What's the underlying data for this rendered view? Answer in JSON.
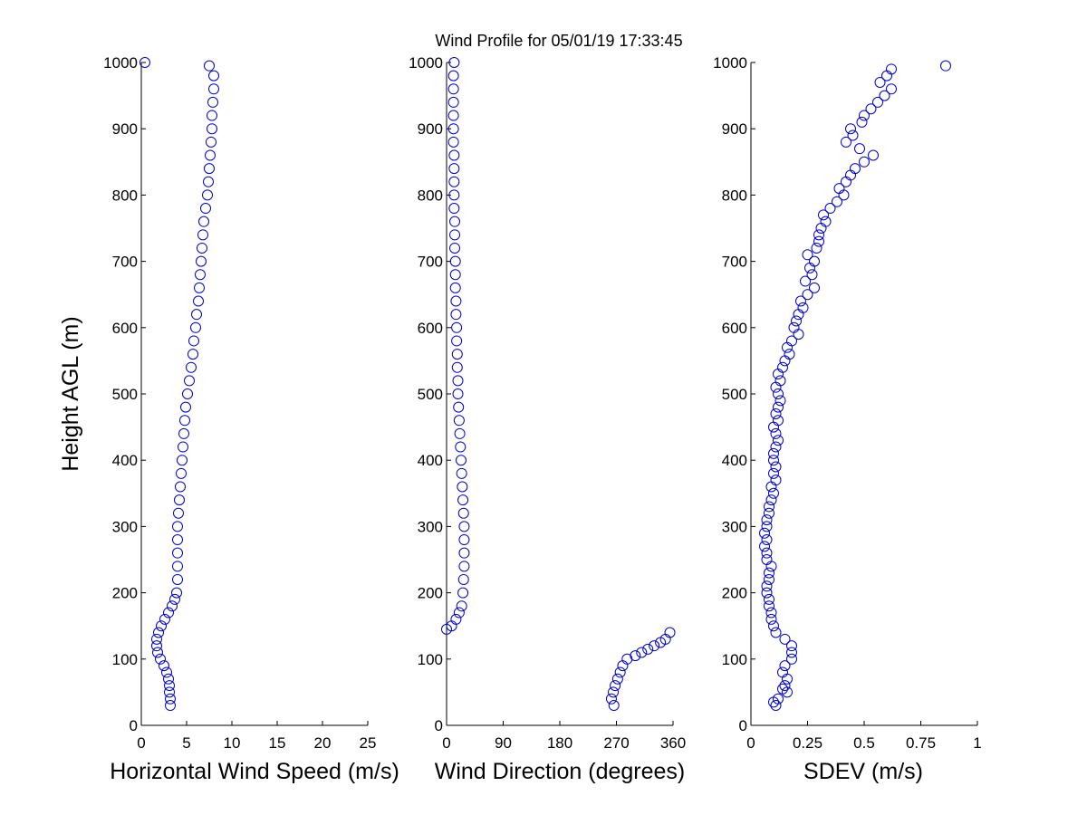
{
  "figure": {
    "title": "Wind Profile for  05/01/19 17:33:45",
    "ylabel": "Height AGL (m)"
  },
  "colors": {
    "marker": "#0000cc",
    "axis": "#000000",
    "background": "#ffffff"
  },
  "chart_data": [
    {
      "type": "scatter",
      "xlabel": "Horizontal Wind Speed (m/s)",
      "xlim": [
        0,
        25
      ],
      "ylim": [
        0,
        1000
      ],
      "xticks": [
        0,
        5,
        10,
        15,
        20,
        25
      ],
      "xtick_labels": [
        "0",
        "5",
        "10",
        "15",
        "20",
        "25"
      ],
      "yticks": [
        0,
        100,
        200,
        300,
        400,
        500,
        600,
        700,
        800,
        900,
        1000
      ],
      "ytick_labels": [
        "0",
        "100",
        "200",
        "300",
        "400",
        "500",
        "600",
        "700",
        "800",
        "900",
        "1000"
      ],
      "grid": false,
      "y": [
        30,
        40,
        50,
        60,
        70,
        80,
        90,
        100,
        110,
        120,
        130,
        140,
        150,
        160,
        170,
        180,
        190,
        200,
        220,
        240,
        260,
        280,
        300,
        320,
        340,
        360,
        380,
        400,
        420,
        440,
        460,
        480,
        500,
        520,
        540,
        560,
        580,
        600,
        620,
        640,
        660,
        680,
        700,
        720,
        740,
        760,
        780,
        800,
        820,
        840,
        860,
        880,
        900,
        920,
        940,
        960,
        980,
        995,
        1000
      ],
      "x": [
        3.2,
        3.2,
        3.1,
        3.1,
        3.0,
        2.8,
        2.5,
        2.1,
        1.8,
        1.7,
        1.7,
        1.9,
        2.2,
        2.6,
        3.0,
        3.4,
        3.7,
        3.9,
        4.0,
        4.0,
        4.0,
        4.0,
        4.0,
        4.1,
        4.2,
        4.3,
        4.4,
        4.5,
        4.6,
        4.7,
        4.8,
        4.9,
        5.1,
        5.3,
        5.5,
        5.7,
        5.8,
        6.0,
        6.1,
        6.3,
        6.4,
        6.5,
        6.6,
        6.7,
        6.8,
        6.9,
        7.1,
        7.3,
        7.4,
        7.5,
        7.6,
        7.7,
        7.8,
        7.8,
        7.9,
        8.0,
        8.0,
        7.5,
        0.4
      ]
    },
    {
      "type": "scatter",
      "xlabel": "Wind Direction (degrees)",
      "xlim": [
        0,
        360
      ],
      "ylim": [
        0,
        1000
      ],
      "xticks": [
        0,
        90,
        180,
        270,
        360
      ],
      "xtick_labels": [
        "0",
        "90",
        "180",
        "270",
        "360"
      ],
      "yticks": [
        0,
        100,
        200,
        300,
        400,
        500,
        600,
        700,
        800,
        900,
        1000
      ],
      "ytick_labels": [
        "0",
        "100",
        "200",
        "300",
        "400",
        "500",
        "600",
        "700",
        "800",
        "900",
        "1000"
      ],
      "grid": false,
      "y": [
        30,
        40,
        50,
        60,
        70,
        80,
        90,
        100,
        105,
        110,
        115,
        120,
        125,
        130,
        140,
        145,
        150,
        160,
        170,
        180,
        200,
        220,
        240,
        260,
        280,
        300,
        320,
        340,
        360,
        380,
        400,
        420,
        440,
        460,
        480,
        500,
        520,
        540,
        560,
        580,
        600,
        620,
        640,
        660,
        680,
        700,
        720,
        740,
        760,
        780,
        800,
        820,
        840,
        860,
        880,
        900,
        920,
        940,
        960,
        980,
        1000
      ],
      "x": [
        266,
        262,
        265,
        268,
        272,
        276,
        280,
        287,
        300,
        310,
        320,
        330,
        340,
        348,
        355,
        0,
        8,
        15,
        20,
        24,
        26,
        27,
        28,
        28,
        28,
        28,
        27,
        26,
        25,
        24,
        23,
        22,
        21,
        20,
        19,
        18,
        18,
        17,
        17,
        16,
        16,
        15,
        15,
        14,
        14,
        14,
        13,
        13,
        13,
        12,
        12,
        12,
        12,
        12,
        11,
        11,
        11,
        11,
        11,
        11,
        12
      ]
    },
    {
      "type": "scatter",
      "xlabel": "SDEV  (m/s)",
      "xlim": [
        0,
        1
      ],
      "ylim": [
        0,
        1000
      ],
      "xticks": [
        0,
        0.25,
        0.5,
        0.75,
        1
      ],
      "xtick_labels": [
        "0",
        "0.25",
        "0.5",
        "0.75",
        "1"
      ],
      "yticks": [
        0,
        100,
        200,
        300,
        400,
        500,
        600,
        700,
        800,
        900,
        1000
      ],
      "ytick_labels": [
        "0",
        "100",
        "200",
        "300",
        "400",
        "500",
        "600",
        "700",
        "800",
        "900",
        "1000"
      ],
      "grid": false,
      "y": [
        30,
        35,
        40,
        50,
        55,
        60,
        70,
        80,
        90,
        100,
        110,
        120,
        130,
        140,
        150,
        160,
        170,
        180,
        190,
        200,
        210,
        220,
        230,
        240,
        250,
        260,
        270,
        280,
        290,
        300,
        310,
        320,
        330,
        340,
        350,
        360,
        370,
        380,
        390,
        400,
        410,
        420,
        430,
        440,
        450,
        460,
        470,
        480,
        490,
        500,
        510,
        520,
        530,
        540,
        550,
        560,
        570,
        580,
        590,
        600,
        610,
        620,
        630,
        640,
        650,
        660,
        670,
        680,
        690,
        700,
        710,
        720,
        730,
        740,
        750,
        760,
        770,
        780,
        790,
        800,
        810,
        820,
        830,
        840,
        850,
        860,
        870,
        880,
        890,
        900,
        910,
        920,
        930,
        940,
        950,
        960,
        970,
        980,
        990,
        995
      ],
      "x": [
        0.11,
        0.1,
        0.12,
        0.16,
        0.14,
        0.15,
        0.16,
        0.14,
        0.15,
        0.18,
        0.18,
        0.18,
        0.15,
        0.11,
        0.1,
        0.09,
        0.09,
        0.08,
        0.08,
        0.07,
        0.07,
        0.08,
        0.08,
        0.09,
        0.07,
        0.07,
        0.06,
        0.07,
        0.06,
        0.07,
        0.07,
        0.08,
        0.08,
        0.09,
        0.1,
        0.09,
        0.11,
        0.1,
        0.11,
        0.1,
        0.1,
        0.11,
        0.12,
        0.11,
        0.1,
        0.12,
        0.11,
        0.12,
        0.13,
        0.12,
        0.11,
        0.13,
        0.12,
        0.14,
        0.15,
        0.17,
        0.16,
        0.18,
        0.21,
        0.19,
        0.2,
        0.21,
        0.23,
        0.22,
        0.25,
        0.28,
        0.24,
        0.27,
        0.26,
        0.28,
        0.25,
        0.29,
        0.3,
        0.3,
        0.31,
        0.33,
        0.32,
        0.35,
        0.38,
        0.41,
        0.39,
        0.42,
        0.44,
        0.46,
        0.5,
        0.54,
        0.48,
        0.42,
        0.45,
        0.44,
        0.49,
        0.5,
        0.53,
        0.56,
        0.59,
        0.62,
        0.57,
        0.6,
        0.62,
        0.86
      ]
    }
  ]
}
